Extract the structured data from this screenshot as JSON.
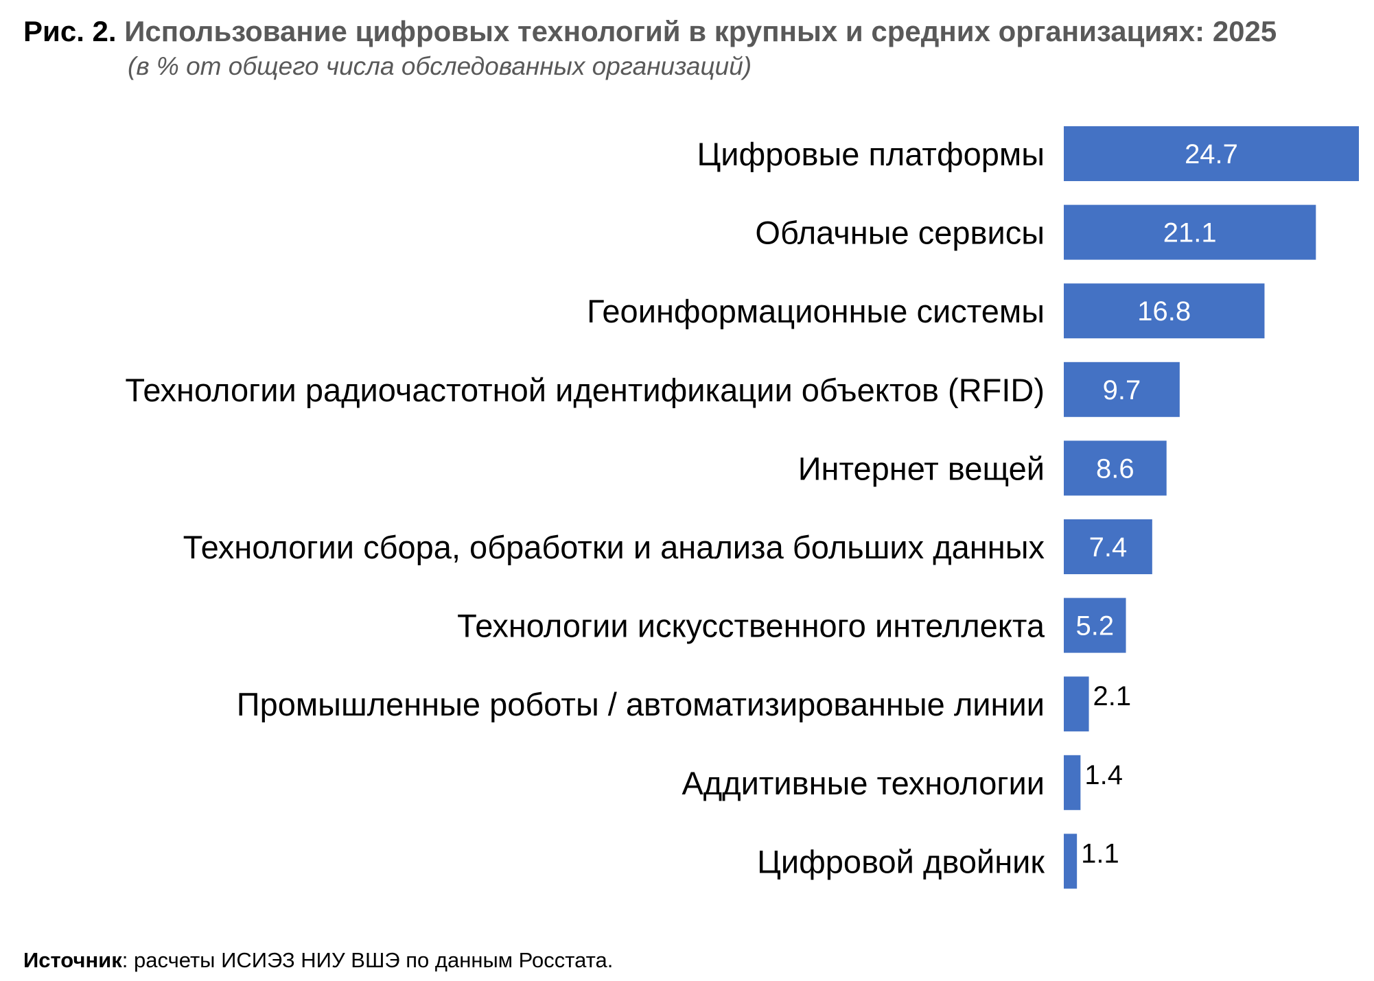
{
  "figure": {
    "label": "Рис. 2.",
    "title": "Использование цифровых технологий в крупных и средних организациях: 2025",
    "subtitle": "(в % от общего числа обследованных организаций)"
  },
  "source": {
    "label": "Источник",
    "text": ": расчеты ИСИЭЗ НИУ ВШЭ по данным Росстата."
  },
  "colors": {
    "bar": "#4472C4",
    "label_inside": "#FFFFFF",
    "label_outside": "#000000",
    "category_text": "#000000"
  },
  "chart_data": {
    "type": "bar",
    "orientation": "horizontal",
    "title": "Использование цифровых технологий в крупных и средних организациях: 2025",
    "subtitle": "(в % от общего числа обследованных организаций)",
    "categories": [
      "Цифровые платформы",
      "Облачные сервисы",
      "Геоинформационные системы",
      "Технологии радиочастотной идентификации объектов (RFID)",
      "Интернет вещей",
      "Технологии сбора, обработки и анализа больших данных",
      "Технологии искусственного интеллекта",
      "Промышленные роботы / автоматизированные линии",
      "Аддитивные технологии",
      "Цифровой двойник"
    ],
    "values": [
      24.7,
      21.1,
      16.8,
      9.7,
      8.6,
      7.4,
      5.2,
      2.1,
      1.4,
      1.1
    ],
    "xlim": [
      0,
      24.7
    ],
    "grid": false,
    "axes_visible": false,
    "legend": "none",
    "data_labels": true
  }
}
